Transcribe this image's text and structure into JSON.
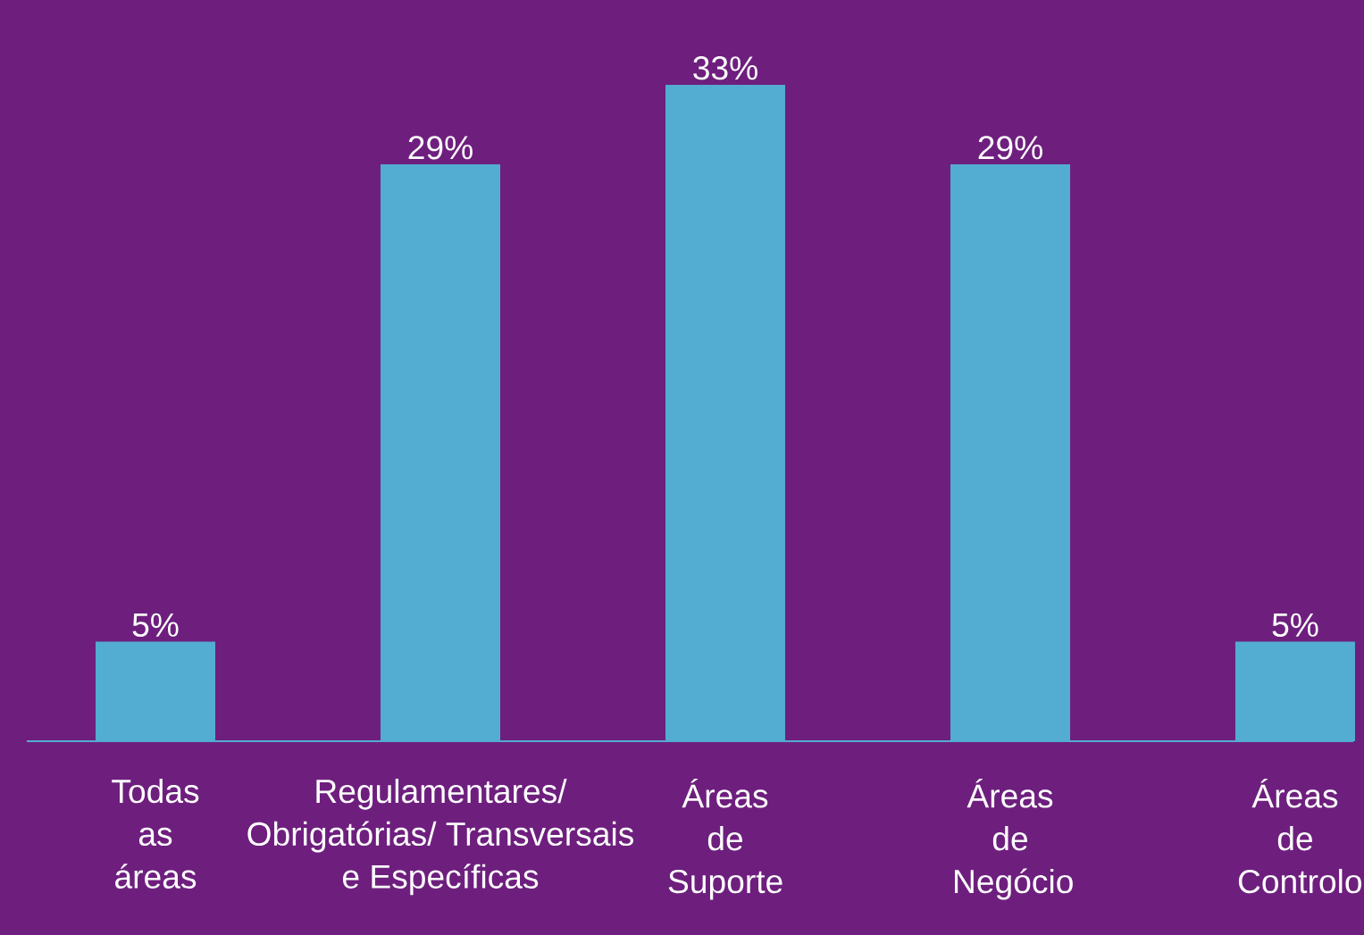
{
  "chart_data": {
    "type": "bar",
    "categories": [
      "Todas as áreas",
      "Regulamentares/ Obrigatórias/ Transversais e Específicas",
      "Áreas de Suporte",
      "Áreas de Negócio",
      "Áreas de Controlo"
    ],
    "values": [
      5,
      29,
      33,
      29,
      5
    ],
    "value_labels": [
      "5%",
      "29%",
      "33%",
      "29%",
      "5%"
    ],
    "color": "#53acd2",
    "relative": false
  }
}
